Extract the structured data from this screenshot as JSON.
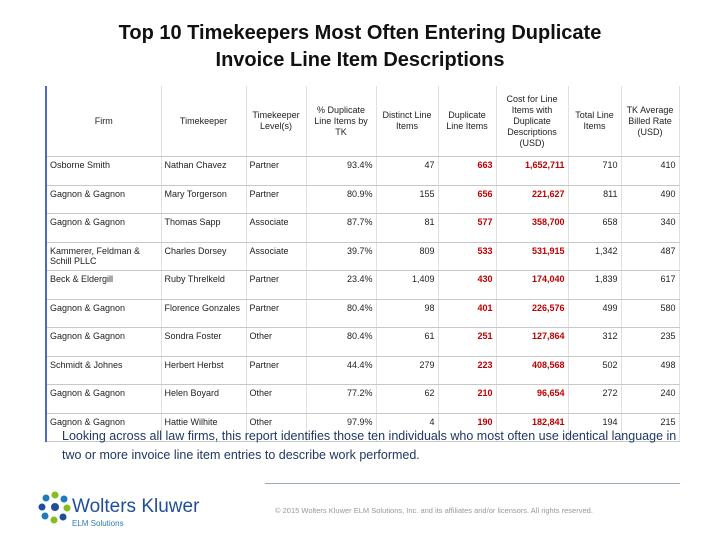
{
  "header": {
    "title_lines": [
      "Top 10 Timekeepers Most Often Entering Duplicate",
      "Invoice Line Item Descriptions"
    ]
  },
  "table": {
    "columns": [
      "Firm",
      "Timekeeper",
      "Timekeeper Level(s)",
      "% Duplicate Line Items by TK",
      "Distinct Line Items",
      "Duplicate Line Items",
      "Cost for Line Items with Duplicate Descriptions (USD)",
      "Total Line Items",
      "TK Average Billed Rate (USD)"
    ],
    "rows": [
      [
        "Osborne Smith",
        "Nathan Chavez",
        "Partner",
        "93.4%",
        "47",
        "663",
        "1,652,711",
        "710",
        "410"
      ],
      [
        "Gagnon & Gagnon",
        "Mary Torgerson",
        "Partner",
        "80.9%",
        "155",
        "656",
        "221,627",
        "811",
        "490"
      ],
      [
        "Gagnon & Gagnon",
        "Thomas Sapp",
        "Associate",
        "87.7%",
        "81",
        "577",
        "358,700",
        "658",
        "340"
      ],
      [
        "Kammerer, Feldman & Schill PLLC",
        "Charles Dorsey",
        "Associate",
        "39.7%",
        "809",
        "533",
        "531,915",
        "1,342",
        "487"
      ],
      [
        "Beck & Eldergill",
        "Ruby Threlkeld",
        "Partner",
        "23.4%",
        "1,409",
        "430",
        "174,040",
        "1,839",
        "617"
      ],
      [
        "Gagnon & Gagnon",
        "Florence Gonzales",
        "Partner",
        "80.4%",
        "98",
        "401",
        "226,576",
        "499",
        "580"
      ],
      [
        "Gagnon & Gagnon",
        "Sondra Foster",
        "Other",
        "80.4%",
        "61",
        "251",
        "127,864",
        "312",
        "235"
      ],
      [
        "Schmidt & Johnes",
        "Herbert Herbst",
        "Partner",
        "44.4%",
        "279",
        "223",
        "408,568",
        "502",
        "498"
      ],
      [
        "Gagnon & Gagnon",
        "Helen Boyard",
        "Other",
        "77.2%",
        "62",
        "210",
        "96,654",
        "272",
        "240"
      ],
      [
        "Gagnon & Gagnon",
        "Hattie Wilhite",
        "Other",
        "97.9%",
        "4",
        "190",
        "182,841",
        "194",
        "215"
      ]
    ]
  },
  "note": "Looking across all law firms, this report identifies those ten individuals who most often use identical language in two or more invoice line item entries to describe work performed.",
  "footer": {
    "brand": "Wolters Kluwer",
    "subbrand": "ELM Solutions",
    "copyright": "© 2015 Wolters Kluwer ELM Solutions, Inc. and its affiliates and/or licensors. All rights reserved."
  }
}
